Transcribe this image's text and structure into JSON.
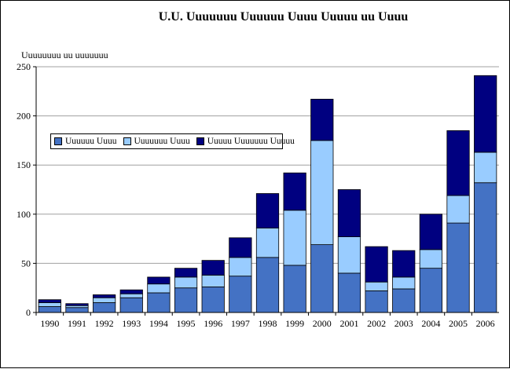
{
  "chart_data": {
    "type": "bar",
    "stacked": true,
    "title": "U.U. Uuuuuuu Uuuuuu Uuuu Uuuuu uu Uuuu",
    "ylabel": "Uuuuuuuu uu uuuuuuu",
    "xlabel": "",
    "ylim": [
      0,
      250
    ],
    "yticks": [
      0,
      50,
      100,
      150,
      200,
      250
    ],
    "grid": true,
    "legend_position": "center-left",
    "categories": [
      "1990",
      "1991",
      "1992",
      "1993",
      "1994",
      "1995",
      "1996",
      "1997",
      "1998",
      "1999",
      "2000",
      "2001",
      "2002",
      "2003",
      "2004",
      "2005",
      "2006"
    ],
    "series": [
      {
        "name": "Uuuuuu Uuuu",
        "color": "#4472C4",
        "values": [
          6,
          5,
          10,
          15,
          20,
          25,
          26,
          37,
          56,
          48,
          69,
          40,
          22,
          24,
          45,
          91,
          132
        ]
      },
      {
        "name": "Uuuuuuu Uuuu",
        "color": "#99CCFF",
        "values": [
          4,
          2,
          5,
          4,
          9,
          11,
          12,
          19,
          30,
          56,
          106,
          37,
          9,
          12,
          19,
          28,
          31
        ]
      },
      {
        "name": "Uuuuu Uuuuuuu Uuuuu",
        "color": "#000080",
        "values": [
          3,
          2,
          3,
          4,
          7,
          9,
          15,
          20,
          35,
          38,
          42,
          48,
          36,
          27,
          36,
          66,
          78
        ]
      }
    ]
  }
}
